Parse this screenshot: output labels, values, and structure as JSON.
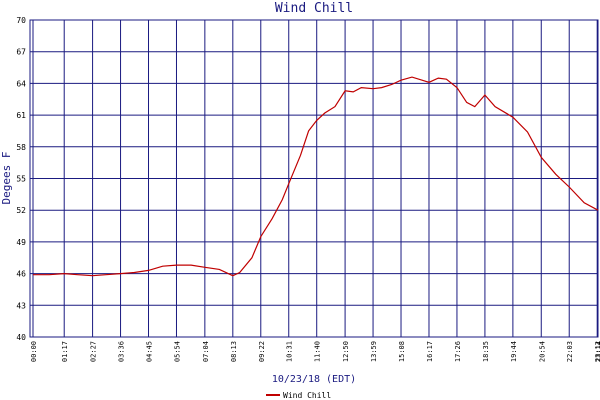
{
  "chart_data": {
    "type": "line",
    "title": "Wind Chill",
    "y_label": "Degees F",
    "x_label": "10/23/18 (EDT)",
    "x": [
      "00:00",
      "00:40",
      "01:17",
      "01:50",
      "02:27",
      "03:00",
      "03:36",
      "04:10",
      "04:45",
      "05:20",
      "05:54",
      "06:30",
      "07:04",
      "07:40",
      "08:13",
      "08:30",
      "09:00",
      "09:22",
      "09:50",
      "10:15",
      "10:31",
      "11:00",
      "11:20",
      "11:40",
      "12:00",
      "12:25",
      "12:50",
      "13:10",
      "13:30",
      "13:59",
      "14:20",
      "14:45",
      "15:08",
      "15:35",
      "16:00",
      "16:17",
      "16:40",
      "17:00",
      "17:26",
      "17:50",
      "18:10",
      "18:35",
      "19:00",
      "19:44",
      "20:20",
      "20:54",
      "21:30",
      "22:03",
      "22:40",
      "23:14"
    ],
    "series": [
      {
        "name": "Wind Chill",
        "color": "#c00000",
        "values": [
          45.9,
          45.9,
          46.0,
          45.9,
          45.8,
          45.9,
          46.0,
          46.1,
          46.3,
          46.7,
          46.8,
          46.8,
          46.6,
          46.4,
          45.8,
          46.1,
          47.5,
          49.5,
          51.2,
          53.0,
          54.5,
          57.2,
          59.5,
          60.5,
          61.2,
          61.8,
          63.3,
          63.2,
          63.6,
          63.5,
          63.6,
          63.9,
          64.3,
          64.6,
          64.3,
          64.1,
          64.5,
          64.4,
          63.6,
          62.2,
          61.8,
          62.9,
          61.8,
          60.8,
          59.4,
          57.0,
          55.4,
          54.2,
          52.7,
          52.0
        ]
      }
    ],
    "xlim": [
      "00:00",
      "23:14"
    ],
    "xticks": [
      "00:00",
      "01:17",
      "02:27",
      "03:36",
      "04:45",
      "05:54",
      "07:04",
      "08:13",
      "09:22",
      "10:31",
      "11:40",
      "12:50",
      "13:59",
      "15:08",
      "16:17",
      "17:26",
      "18:35",
      "19:44",
      "20:54",
      "22:03",
      "23:12",
      "23:14"
    ],
    "ylim": [
      40,
      70
    ],
    "yticks": [
      40,
      43,
      46,
      49,
      52,
      55,
      58,
      61,
      64,
      67,
      70
    ],
    "grid": true,
    "legend": "bottom"
  }
}
